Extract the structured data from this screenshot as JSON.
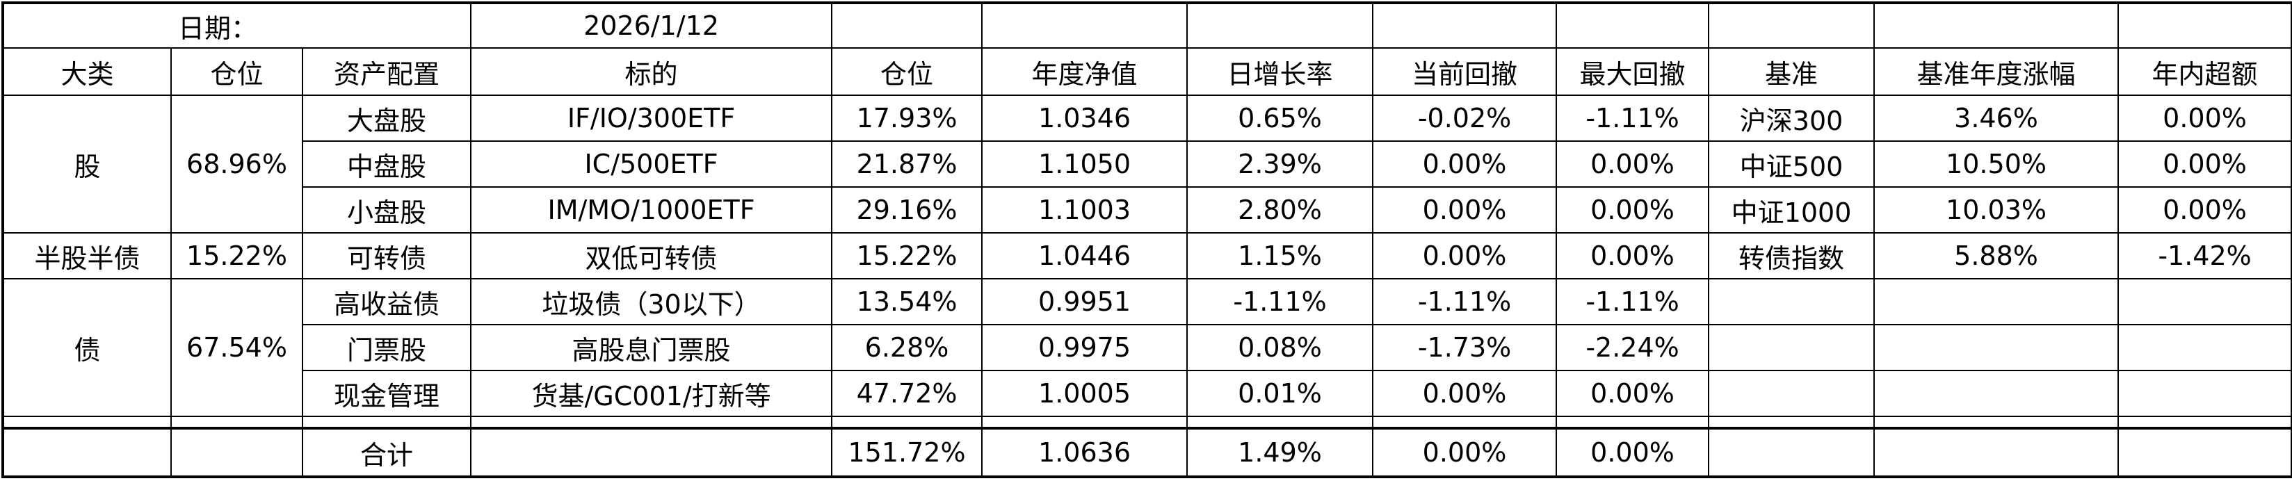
{
  "header": {
    "date_label": "日期：",
    "date": "2026/1/12"
  },
  "table": {
    "columns": [
      "大类",
      "仓位",
      "资产配置",
      "标的",
      "仓位",
      "年度净值",
      "日增长率",
      "当前回撤",
      "最大回撤",
      "基准",
      "基准年度涨幅",
      "年内超额"
    ],
    "groups": [
      {
        "category": "股",
        "position": "68.96%",
        "rows": [
          [
            "大盘股",
            "IF/IO/300ETF",
            "17.93%",
            "1.0346",
            "0.65%",
            "-0.02%",
            "-1.11%",
            "沪深300",
            "3.46%",
            "0.00%"
          ],
          [
            "中盘股",
            "IC/500ETF",
            "21.87%",
            "1.1050",
            "2.39%",
            "0.00%",
            "0.00%",
            "中证500",
            "10.50%",
            "0.00%"
          ],
          [
            "小盘股",
            "IM/MO/1000ETF",
            "29.16%",
            "1.1003",
            "2.80%",
            "0.00%",
            "0.00%",
            "中证1000",
            "10.03%",
            "0.00%"
          ]
        ]
      },
      {
        "category": "半股半债",
        "position": "15.22%",
        "rows": [
          [
            "可转债",
            "双低可转债",
            "15.22%",
            "1.0446",
            "1.15%",
            "0.00%",
            "0.00%",
            "转债指数",
            "5.88%",
            "-1.42%"
          ]
        ]
      },
      {
        "category": "债",
        "position": "67.54%",
        "rows": [
          [
            "高收益债",
            "垃圾债（30以下）",
            "13.54%",
            "0.9951",
            "-1.11%",
            "-1.11%",
            "-1.11%"
          ],
          [
            "门票股",
            "高股息门票股",
            "6.28%",
            "0.9975",
            "0.08%",
            "-1.73%",
            "-2.24%"
          ],
          [
            "现金管理",
            "货基/GC001/打新等",
            "47.72%",
            "1.0005",
            "0.01%",
            "0.00%",
            "0.00%"
          ]
        ]
      }
    ],
    "total": {
      "label": "合计",
      "values": [
        "151.72%",
        "1.0636",
        "1.49%",
        "0.00%",
        "0.00%"
      ]
    }
  }
}
